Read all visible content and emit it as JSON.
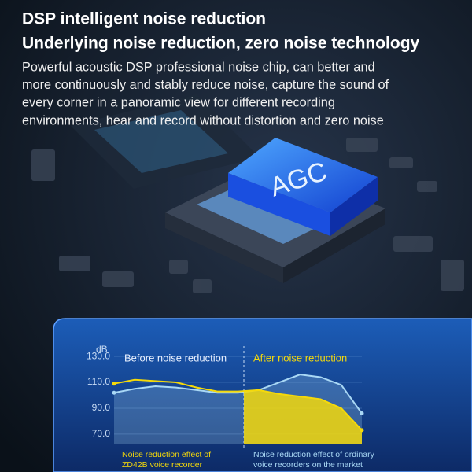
{
  "header": {
    "title": "DSP intelligent noise reduction",
    "subtitle": "Underlying noise reduction, zero noise technology"
  },
  "paragraph": {
    "lines": [
      "Powerful acoustic DSP professional noise chip, can better and",
      "more continuously and stably reduce noise, capture the sound of",
      "every corner in a panoramic view for different recording",
      "environments, hear and record without distortion and zero noise"
    ]
  },
  "chip_label": "AGC",
  "chart_data": {
    "type": "line",
    "y_label": "dB",
    "regions": [
      "Before noise reduction",
      "After noise reduction"
    ],
    "categories": [
      null,
      null,
      null,
      null,
      null,
      null,
      null,
      null,
      null,
      null,
      null,
      null,
      null
    ],
    "series": [
      {
        "name": "Noise reduction effect of ZD42B voice recorder",
        "color": "#f5d90a",
        "values": [
          109,
          112,
          111,
          110,
          106,
          103,
          103,
          104,
          101,
          99,
          97,
          90,
          73
        ]
      },
      {
        "name": "Noise reduction effect of ordinary voice recorders on the market",
        "color": "#a9d8f5",
        "values": [
          102,
          105,
          107,
          106,
          104,
          102,
          102,
          104,
          110,
          116,
          114,
          108,
          86
        ]
      }
    ],
    "ylim": [
      62,
      138
    ],
    "yticks": [
      {
        "value": 130,
        "label": "130.0"
      },
      {
        "value": 110,
        "label": "110.0"
      },
      {
        "value": 90,
        "label": "90.0"
      },
      {
        "value": 70,
        "label": "70.0"
      }
    ],
    "grid": true
  }
}
